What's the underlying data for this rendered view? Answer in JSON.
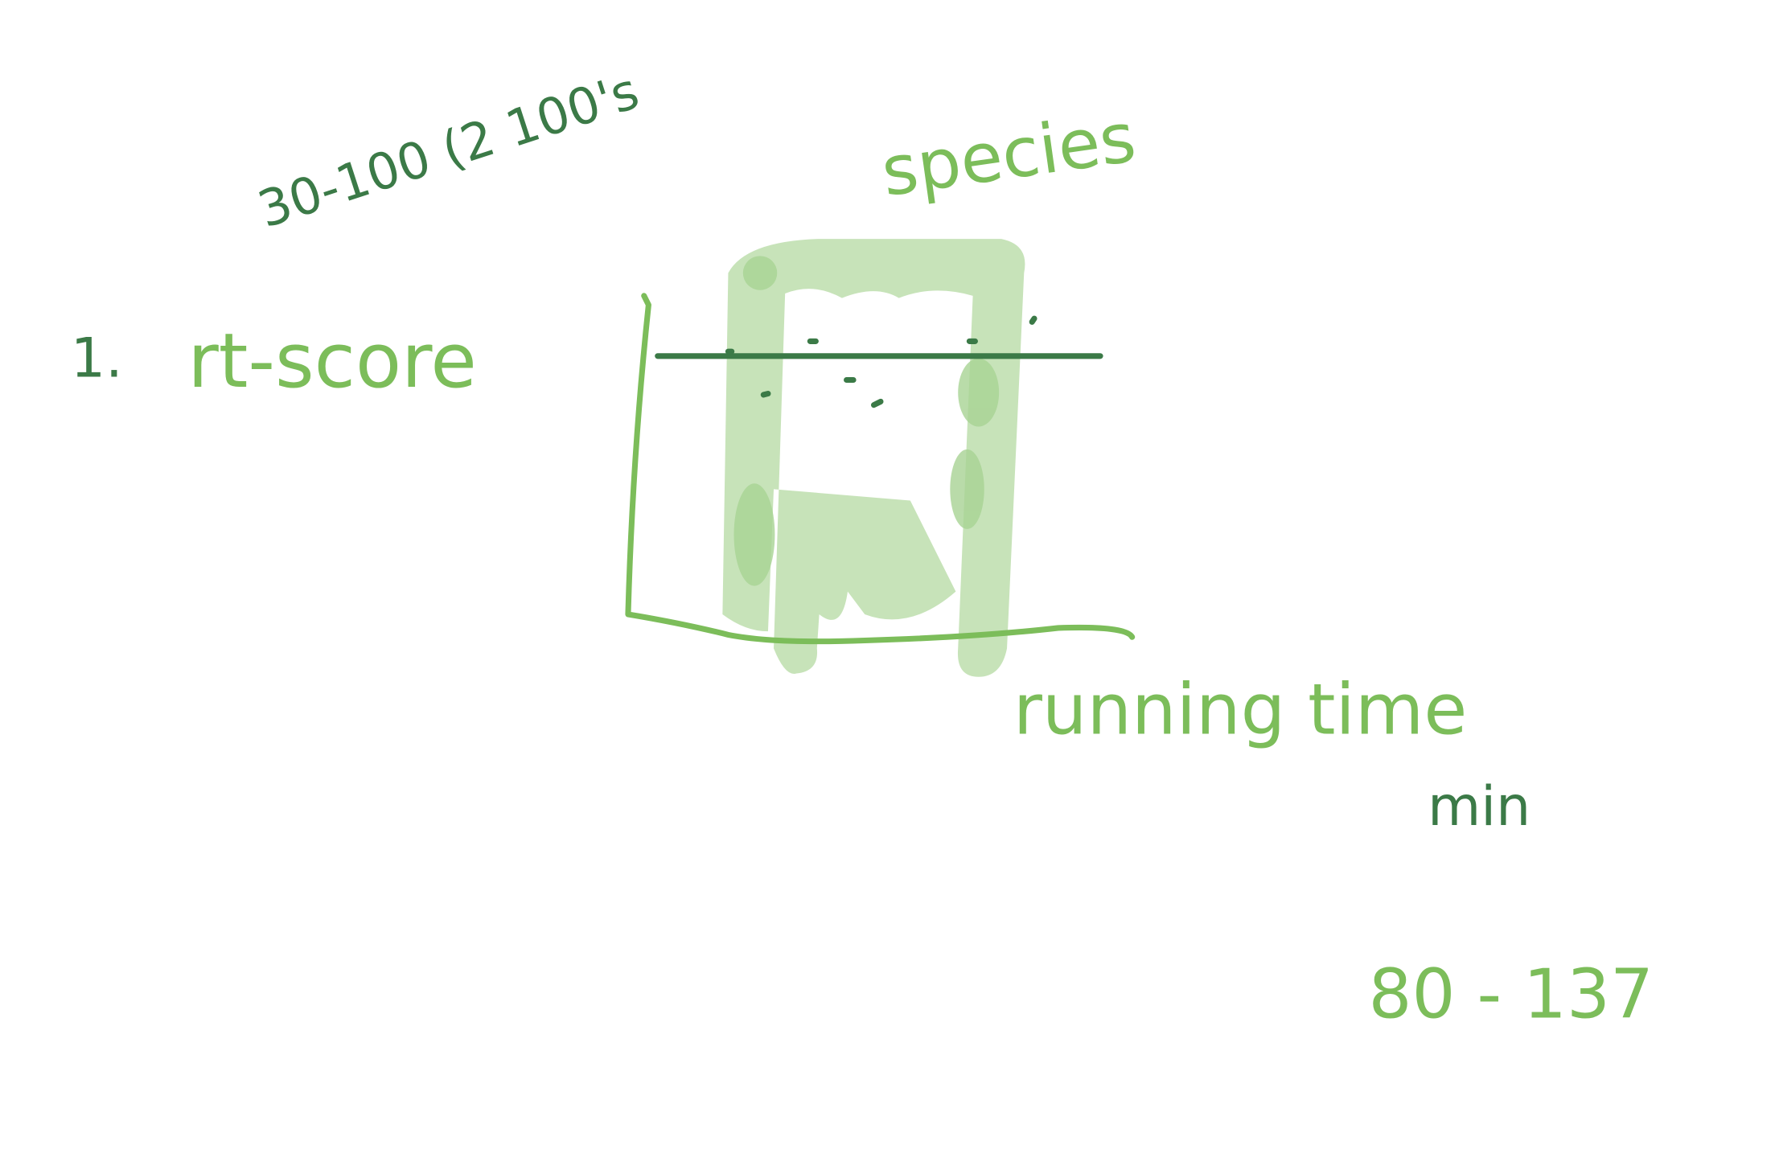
{
  "sketch": {
    "range_note": "30-100 (2 100's",
    "color_label": "species",
    "item_number": "1.",
    "y_label": "rt-score",
    "x_label": "running time",
    "x_unit": "min",
    "x_range": "80 - 137"
  }
}
